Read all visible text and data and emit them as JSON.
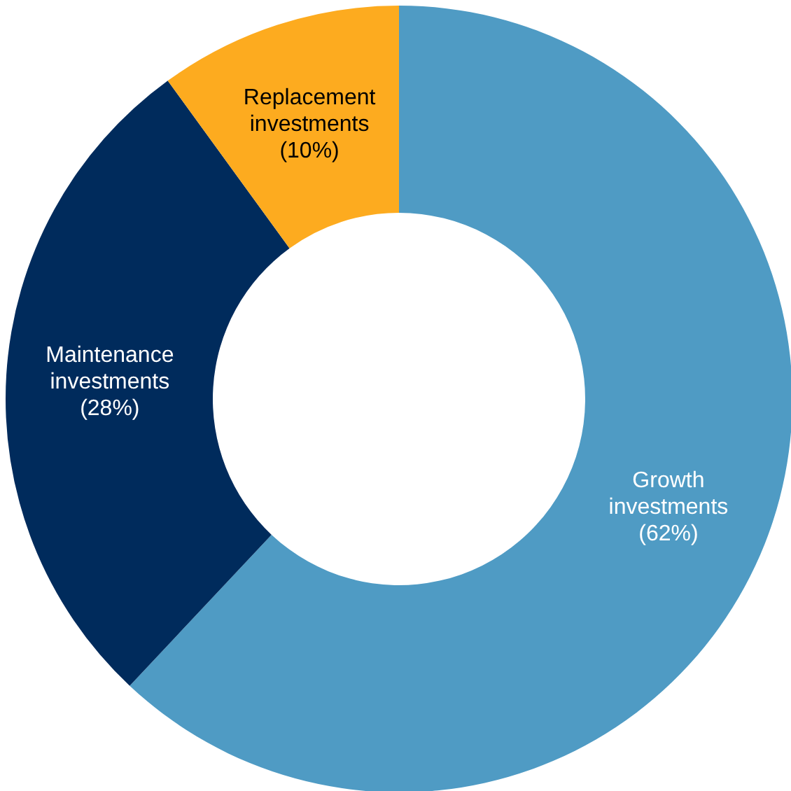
{
  "chart_data": {
    "type": "donut",
    "categories": [
      "Growth investments",
      "Maintenance investments",
      "Replacement investments"
    ],
    "values": [
      62,
      28,
      10
    ],
    "colors": [
      "#4f9bc4",
      "#002b5c",
      "#fdab1f"
    ],
    "value_labels": [
      "(62%)",
      "(28%)",
      "(10%)"
    ],
    "legend": false
  }
}
